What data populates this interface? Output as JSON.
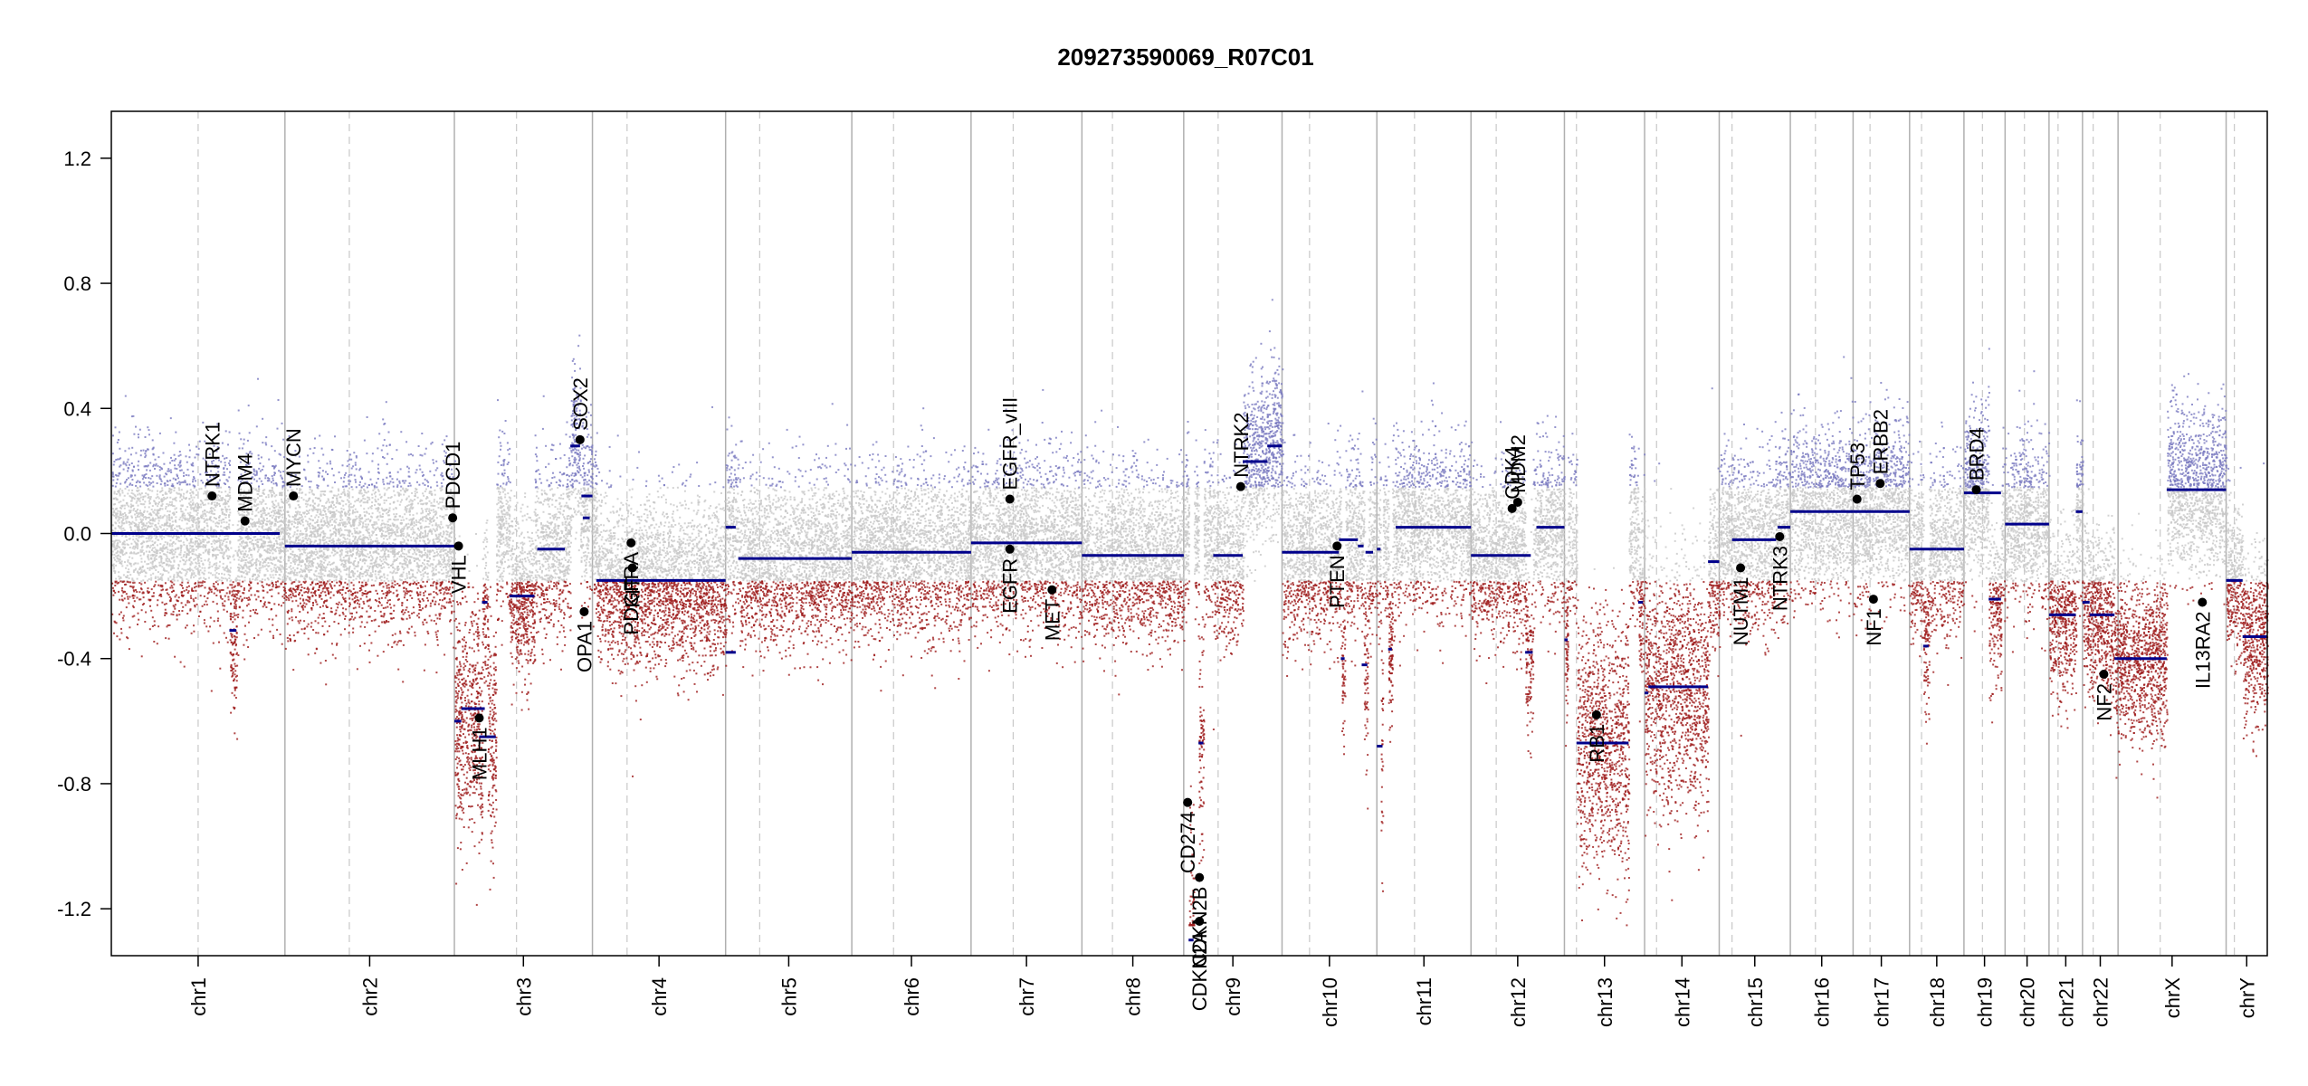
{
  "chart_data": {
    "type": "scatter",
    "title": "209273590069_R07C01",
    "xlabel": "",
    "ylabel": "",
    "ylim": [
      -1.35,
      1.35
    ],
    "y_ticks": [
      "1.2",
      "0.8",
      "0.4",
      "0.0",
      "-0.4",
      "-0.8",
      "-1.2"
    ],
    "y_tick_values": [
      1.2,
      0.8,
      0.4,
      0.0,
      -0.4,
      -0.8,
      -1.2
    ],
    "grid": false,
    "colors": {
      "gain": "#7b7bc0",
      "neutral": "#c8c8c8",
      "loss": "#9e1a1a",
      "segment": "#00008b",
      "gene_point": "#000000",
      "chr_boundary": "#b0b0b0",
      "centromere": "#c8c8c8"
    },
    "chromosomes": [
      {
        "name": "chr1",
        "length": 249,
        "centromere": 0.5
      },
      {
        "name": "chr2",
        "length": 243,
        "centromere": 0.38
      },
      {
        "name": "chr3",
        "length": 198,
        "centromere": 0.45
      },
      {
        "name": "chr4",
        "length": 191,
        "centromere": 0.26
      },
      {
        "name": "chr5",
        "length": 181,
        "centromere": 0.27
      },
      {
        "name": "chr6",
        "length": 171,
        "centromere": 0.35
      },
      {
        "name": "chr7",
        "length": 159,
        "centromere": 0.38
      },
      {
        "name": "chr8",
        "length": 146,
        "centromere": 0.3
      },
      {
        "name": "chr9",
        "length": 141,
        "centromere": 0.35
      },
      {
        "name": "chr10",
        "length": 136,
        "centromere": 0.29
      },
      {
        "name": "chr11",
        "length": 135,
        "centromere": 0.4
      },
      {
        "name": "chr12",
        "length": 134,
        "centromere": 0.27
      },
      {
        "name": "chr13",
        "length": 115,
        "centromere": 0.15
      },
      {
        "name": "chr14",
        "length": 107,
        "centromere": 0.16
      },
      {
        "name": "chr15",
        "length": 102,
        "centromere": 0.18
      },
      {
        "name": "chr16",
        "length": 90,
        "centromere": 0.4
      },
      {
        "name": "chr17",
        "length": 81,
        "centromere": 0.3
      },
      {
        "name": "chr18",
        "length": 78,
        "centromere": 0.22
      },
      {
        "name": "chr19",
        "length": 59,
        "centromere": 0.45
      },
      {
        "name": "chr20",
        "length": 63,
        "centromere": 0.44
      },
      {
        "name": "chr21",
        "length": 48,
        "centromere": 0.27
      },
      {
        "name": "chr22",
        "length": 51,
        "centromere": 0.3
      },
      {
        "name": "chrX",
        "length": 155,
        "centromere": 0.39
      },
      {
        "name": "chrY",
        "length": 59,
        "centromere": 0.2
      }
    ],
    "segments": [
      {
        "chr": "chr1",
        "start": 0.0,
        "end": 0.92,
        "value": 0.0
      },
      {
        "chr": "chr1",
        "start": 0.68,
        "end": 0.72,
        "value": -0.31
      },
      {
        "chr": "chr1",
        "start": 0.76,
        "end": 0.97,
        "value": 0.0
      },
      {
        "chr": "chr2",
        "start": 0.0,
        "end": 1.0,
        "value": -0.04
      },
      {
        "chr": "chr3",
        "start": 0.0,
        "end": 0.05,
        "value": -0.6
      },
      {
        "chr": "chr3",
        "start": 0.05,
        "end": 0.22,
        "value": -0.56
      },
      {
        "chr": "chr3",
        "start": 0.18,
        "end": 0.3,
        "value": -0.65
      },
      {
        "chr": "chr3",
        "start": 0.2,
        "end": 0.24,
        "value": -0.22
      },
      {
        "chr": "chr3",
        "start": 0.4,
        "end": 0.58,
        "value": -0.2
      },
      {
        "chr": "chr3",
        "start": 0.6,
        "end": 0.8,
        "value": -0.05
      },
      {
        "chr": "chr3",
        "start": 0.84,
        "end": 0.91,
        "value": 0.28
      },
      {
        "chr": "chr3",
        "start": 0.92,
        "end": 1.0,
        "value": 0.12
      },
      {
        "chr": "chr3",
        "start": 0.93,
        "end": 0.98,
        "value": 0.05
      },
      {
        "chr": "chr4",
        "start": 0.03,
        "end": 1.0,
        "value": -0.15
      },
      {
        "chr": "chr5",
        "start": 0.0,
        "end": 0.08,
        "value": 0.02
      },
      {
        "chr": "chr5",
        "start": 0.0,
        "end": 0.08,
        "value": -0.38
      },
      {
        "chr": "chr5",
        "start": 0.1,
        "end": 1.0,
        "value": -0.08
      },
      {
        "chr": "chr6",
        "start": 0.0,
        "end": 1.0,
        "value": -0.06
      },
      {
        "chr": "chr7",
        "start": 0.0,
        "end": 1.0,
        "value": -0.03
      },
      {
        "chr": "chr8",
        "start": 0.0,
        "end": 1.0,
        "value": -0.07
      },
      {
        "chr": "chr9",
        "start": 0.05,
        "end": 0.1,
        "value": -1.3
      },
      {
        "chr": "chr9",
        "start": 0.15,
        "end": 0.2,
        "value": -0.67
      },
      {
        "chr": "chr9",
        "start": 0.3,
        "end": 0.6,
        "value": -0.07
      },
      {
        "chr": "chr9",
        "start": 0.6,
        "end": 0.85,
        "value": 0.23
      },
      {
        "chr": "chr9",
        "start": 0.85,
        "end": 1.0,
        "value": 0.28
      },
      {
        "chr": "chr10",
        "start": 0.0,
        "end": 0.6,
        "value": -0.06
      },
      {
        "chr": "chr10",
        "start": 0.6,
        "end": 0.8,
        "value": -0.02
      },
      {
        "chr": "chr10",
        "start": 0.62,
        "end": 0.66,
        "value": -0.4
      },
      {
        "chr": "chr10",
        "start": 0.8,
        "end": 0.86,
        "value": -0.04
      },
      {
        "chr": "chr10",
        "start": 0.84,
        "end": 0.9,
        "value": -0.42
      },
      {
        "chr": "chr10",
        "start": 0.88,
        "end": 0.96,
        "value": -0.06
      },
      {
        "chr": "chr11",
        "start": 0.0,
        "end": 0.06,
        "value": -0.68
      },
      {
        "chr": "chr11",
        "start": 0.0,
        "end": 0.04,
        "value": -0.05
      },
      {
        "chr": "chr11",
        "start": 0.12,
        "end": 0.16,
        "value": -0.37
      },
      {
        "chr": "chr11",
        "start": 0.2,
        "end": 1.0,
        "value": 0.02
      },
      {
        "chr": "chr12",
        "start": 0.0,
        "end": 0.64,
        "value": -0.07
      },
      {
        "chr": "chr12",
        "start": 0.58,
        "end": 0.66,
        "value": -0.38
      },
      {
        "chr": "chr12",
        "start": 0.7,
        "end": 1.0,
        "value": 0.02
      },
      {
        "chr": "chr13",
        "start": 0.0,
        "end": 0.04,
        "value": -0.34
      },
      {
        "chr": "chr13",
        "start": 0.15,
        "end": 0.8,
        "value": -0.67
      },
      {
        "chr": "chr13",
        "start": 0.92,
        "end": 0.98,
        "value": -0.22
      },
      {
        "chr": "chr14",
        "start": 0.0,
        "end": 0.05,
        "value": -0.51
      },
      {
        "chr": "chr14",
        "start": 0.05,
        "end": 0.85,
        "value": -0.49
      },
      {
        "chr": "chr14",
        "start": 0.85,
        "end": 1.0,
        "value": -0.09
      },
      {
        "chr": "chr15",
        "start": 0.18,
        "end": 0.8,
        "value": -0.02
      },
      {
        "chr": "chr15",
        "start": 0.82,
        "end": 1.0,
        "value": 0.02
      },
      {
        "chr": "chr16",
        "start": 0.0,
        "end": 1.0,
        "value": 0.07
      },
      {
        "chr": "chr17",
        "start": 0.0,
        "end": 1.0,
        "value": 0.07
      },
      {
        "chr": "chr18",
        "start": 0.0,
        "end": 0.5,
        "value": -0.05
      },
      {
        "chr": "chr18",
        "start": 0.25,
        "end": 0.35,
        "value": -0.36
      },
      {
        "chr": "chr18",
        "start": 0.5,
        "end": 1.0,
        "value": -0.05
      },
      {
        "chr": "chr19",
        "start": 0.0,
        "end": 0.9,
        "value": 0.13
      },
      {
        "chr": "chr19",
        "start": 0.6,
        "end": 0.9,
        "value": -0.21
      },
      {
        "chr": "chr20",
        "start": 0.0,
        "end": 1.0,
        "value": 0.03
      },
      {
        "chr": "chr21",
        "start": 0.0,
        "end": 0.8,
        "value": -0.26
      },
      {
        "chr": "chr21",
        "start": 0.8,
        "end": 1.0,
        "value": 0.07
      },
      {
        "chr": "chr22",
        "start": 0.0,
        "end": 0.2,
        "value": -0.22
      },
      {
        "chr": "chr22",
        "start": 0.2,
        "end": 0.9,
        "value": -0.26
      },
      {
        "chr": "chr22",
        "start": 0.9,
        "end": 1.0,
        "value": -0.4
      },
      {
        "chrX_note": "",
        "chr": "chrX",
        "start": 0.0,
        "end": 0.45,
        "value": -0.4
      },
      {
        "chr": "chrX",
        "start": 0.45,
        "end": 1.0,
        "value": 0.14
      },
      {
        "chr": "chrY",
        "start": 0.0,
        "end": 0.4,
        "value": -0.15
      },
      {
        "chr": "chrY",
        "start": 0.4,
        "end": 1.0,
        "value": -0.33
      }
    ],
    "genes": [
      {
        "name": "NTRK1",
        "chr": "chr1",
        "pos": 0.58,
        "value": 0.12
      },
      {
        "name": "MDM4",
        "chr": "chr1",
        "pos": 0.77,
        "value": 0.04
      },
      {
        "name": "MYCN",
        "chr": "chr2",
        "pos": 0.05,
        "value": 0.12
      },
      {
        "name": "PDCD1",
        "chr": "chr2",
        "pos": 0.99,
        "value": 0.05
      },
      {
        "name": "VHL",
        "chr": "chr3",
        "pos": 0.03,
        "value": -0.04
      },
      {
        "name": "MLH1",
        "chr": "chr3",
        "pos": 0.18,
        "value": -0.59
      },
      {
        "name": "SOX2",
        "chr": "chr3",
        "pos": 0.91,
        "value": 0.3
      },
      {
        "name": "OPA1",
        "chr": "chr3",
        "pos": 0.94,
        "value": -0.25
      },
      {
        "name": "PDGFRA",
        "chr": "chr4",
        "pos": 0.29,
        "value": -0.03
      },
      {
        "name": "KIT",
        "chr": "chr4",
        "pos": 0.3,
        "value": -0.11
      },
      {
        "name": "EGFR_vIII",
        "chr": "chr7",
        "pos": 0.35,
        "value": 0.11
      },
      {
        "name": "EGFR",
        "chr": "chr7",
        "pos": 0.35,
        "value": -0.05
      },
      {
        "name": "MET",
        "chr": "chr7",
        "pos": 0.73,
        "value": -0.18
      },
      {
        "name": "CD274",
        "chr": "chr9",
        "pos": 0.04,
        "value": -0.86
      },
      {
        "name": "CDKN2A",
        "chr": "chr9",
        "pos": 0.16,
        "value": -1.24
      },
      {
        "name": "CDKN2B",
        "chr": "chr9",
        "pos": 0.16,
        "value": -1.1
      },
      {
        "name": "NTRK2",
        "chr": "chr9",
        "pos": 0.58,
        "value": 0.15
      },
      {
        "name": "PTEN",
        "chr": "chr10",
        "pos": 0.58,
        "value": -0.04
      },
      {
        "name": "CDK4",
        "chr": "chr12",
        "pos": 0.44,
        "value": 0.08
      },
      {
        "name": "MDM2",
        "chr": "chr12",
        "pos": 0.5,
        "value": 0.1
      },
      {
        "name": "RB1",
        "chr": "chr13",
        "pos": 0.4,
        "value": -0.58
      },
      {
        "name": "NUTM1",
        "chr": "chr15",
        "pos": 0.3,
        "value": -0.11
      },
      {
        "name": "NTRK3",
        "chr": "chr15",
        "pos": 0.85,
        "value": -0.01
      },
      {
        "name": "TP53",
        "chr": "chr17",
        "pos": 0.07,
        "value": 0.11
      },
      {
        "name": "ERBB2",
        "chr": "chr17",
        "pos": 0.48,
        "value": 0.16
      },
      {
        "name": "NF1",
        "chr": "chr17",
        "pos": 0.36,
        "value": -0.21
      },
      {
        "name": "BRD4",
        "chr": "chr19",
        "pos": 0.3,
        "value": 0.14
      },
      {
        "name": "NF2",
        "chr": "chr22",
        "pos": 0.6,
        "value": -0.45
      },
      {
        "name": "IL13RA2",
        "chr": "chrX",
        "pos": 0.78,
        "value": -0.22
      }
    ]
  }
}
